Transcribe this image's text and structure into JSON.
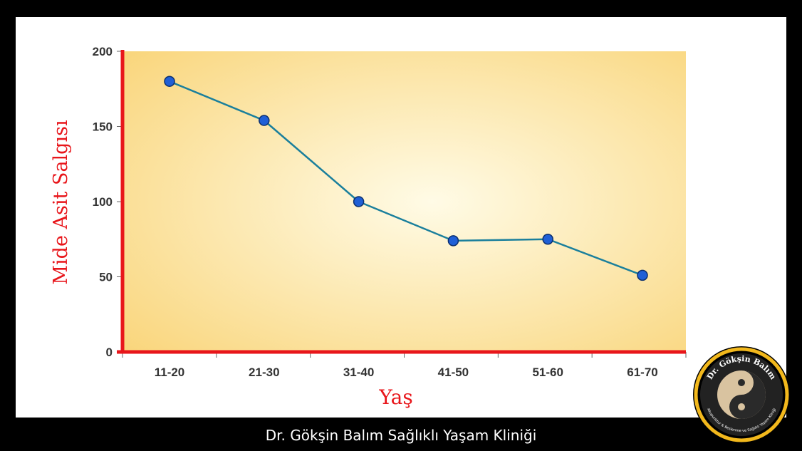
{
  "footer_text": "Dr. Gökşin Balım Sağlıklı Yaşam Kliniği",
  "logo": {
    "title": "Dr. Gökşin Balım",
    "subtitle": "Akupunktur & Beslenme ve Sağlıklı Yaşam Kliniği",
    "ring_color": "#f2b81c"
  },
  "colors": {
    "axis": "#e8161b",
    "line": "#1a7f9c",
    "marker": "#1f5fd6",
    "panel_center": "#fffbe6",
    "panel_edge": "#f9d57a"
  },
  "chart_data": {
    "type": "line",
    "xlabel": "Yaş",
    "ylabel": "Mide Asit Salgısı",
    "categories": [
      "11-20",
      "21-30",
      "31-40",
      "41-50",
      "51-60",
      "61-70"
    ],
    "values": [
      180,
      154,
      100,
      74,
      75,
      51
    ],
    "ylim": [
      0,
      200
    ],
    "yticks": [
      0,
      50,
      100,
      150,
      200
    ],
    "grid": false
  }
}
